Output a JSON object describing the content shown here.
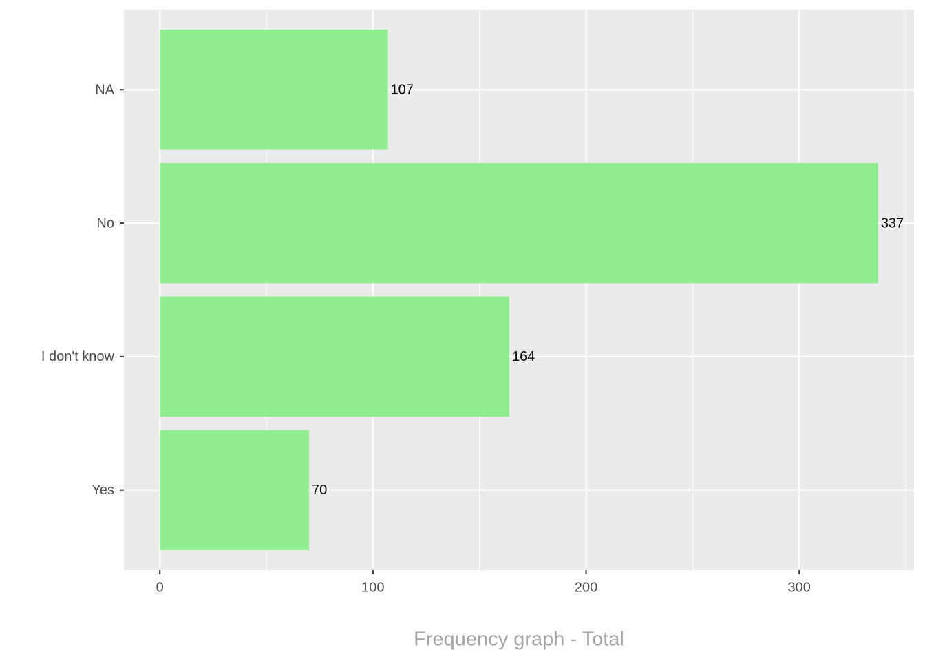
{
  "chart_data": {
    "type": "barh",
    "x_label": "Frequency graph - Total",
    "categories": [
      "Yes",
      "I don't know",
      "No",
      "NA"
    ],
    "values": [
      70,
      164,
      337,
      107
    ],
    "color": "#90ee90",
    "xlim": [
      -16.85,
      353.85
    ],
    "xticks": [
      0,
      100,
      200,
      300
    ],
    "x_minor_ticks": [
      50,
      150,
      250,
      350
    ],
    "grid": true,
    "show_value_labels": true
  }
}
